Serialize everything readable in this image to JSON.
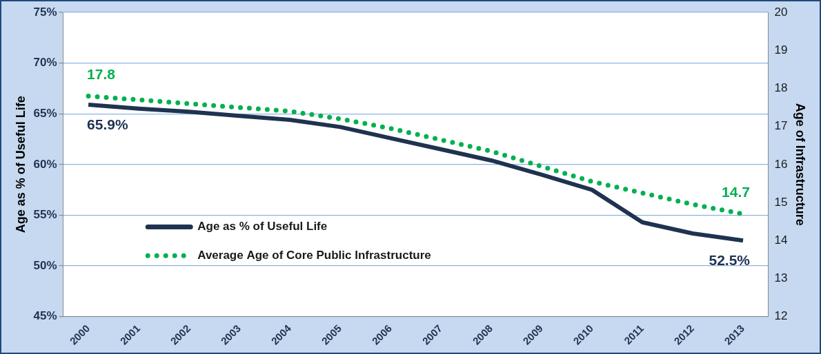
{
  "chart_data": {
    "type": "line",
    "categories": [
      "2000",
      "2001",
      "2002",
      "2003",
      "2004",
      "2005",
      "2006",
      "2007",
      "2008",
      "2009",
      "2010",
      "2011",
      "2012",
      "2013"
    ],
    "series": [
      {
        "name": "Age as % of Useful Life",
        "color": "#1f3350",
        "axis": "y",
        "line_style": "solid",
        "marker": "none",
        "values": [
          65.9,
          65.5,
          65.2,
          64.8,
          64.4,
          63.7,
          62.6,
          61.5,
          60.4,
          59.0,
          57.5,
          54.3,
          53.2,
          52.5
        ]
      },
      {
        "name": "Average Age of Core Public Infrastructure",
        "color": "#00b050",
        "axis": "y2",
        "line_style": "dotted",
        "marker": "none",
        "values": [
          17.8,
          17.7,
          17.6,
          17.5,
          17.4,
          17.2,
          16.95,
          16.65,
          16.35,
          15.95,
          15.55,
          15.25,
          14.95,
          14.7
        ]
      }
    ],
    "y_label": "Age as % of Useful Life",
    "y2_label": "Age of Infrastructure",
    "ylim": [
      45,
      75
    ],
    "yticks": [
      {
        "value": 45,
        "label": "45%"
      },
      {
        "value": 50,
        "label": "50%"
      },
      {
        "value": 55,
        "label": "55%"
      },
      {
        "value": 60,
        "label": "60%"
      },
      {
        "value": 65,
        "label": "65%"
      },
      {
        "value": 70,
        "label": "70%"
      },
      {
        "value": 75,
        "label": "75%"
      }
    ],
    "y2lim": [
      12,
      20
    ],
    "y2ticks": [
      12,
      13,
      14,
      15,
      16,
      17,
      18,
      19,
      20
    ],
    "grid": true,
    "legend": "left",
    "annotations": [
      {
        "text": "17.8",
        "x": "2000",
        "y": 17.8,
        "series": "Average Age of Core Public Infrastructure"
      },
      {
        "text": "65.9%",
        "x": "2000",
        "y": 65.9,
        "series": "Age as % of Useful Life"
      },
      {
        "text": "14.7",
        "x": "2013",
        "y": 14.7,
        "series": "Average Age of Core Public Infrastructure"
      },
      {
        "text": "52.5%",
        "x": "2013",
        "y": 52.5,
        "series": "Age as % of Useful Life"
      }
    ]
  }
}
